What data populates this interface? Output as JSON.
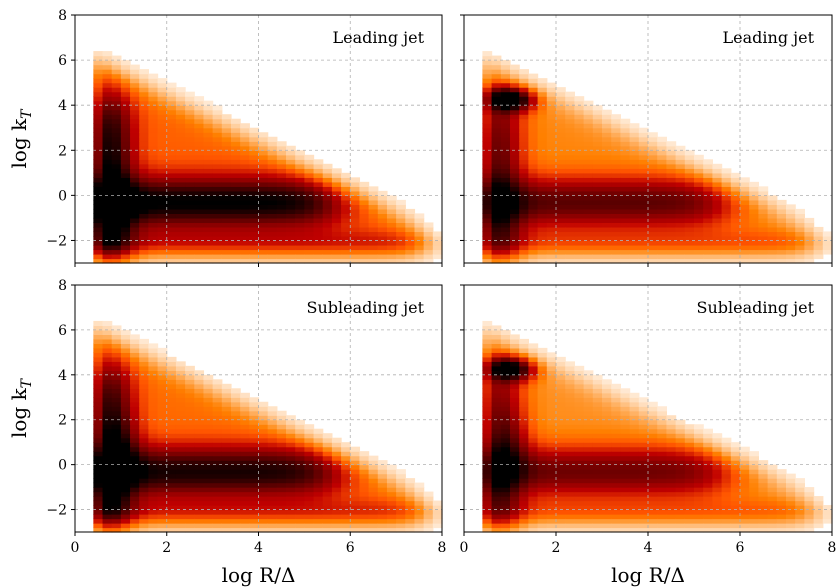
{
  "chart_data": {
    "type": "heatmap",
    "shared_axes": {
      "xlabel": "log R/Δ",
      "ylabel": "log k_T",
      "xlim": [
        0,
        8
      ],
      "ylim": [
        -3,
        8
      ],
      "xticks": [
        0,
        2,
        4,
        6,
        8
      ],
      "yticks": [
        -2,
        0,
        2,
        4,
        6,
        8
      ],
      "grid": true,
      "colormap": "gist_heat_r"
    },
    "panels": [
      {
        "label": "Leading jet",
        "shape": "no_peak"
      },
      {
        "label": "Leading jet",
        "shape": "with_peak"
      },
      {
        "label": "Subleading jet",
        "shape": "no_peak"
      },
      {
        "label": "Subleading jet",
        "shape": "with_peak"
      }
    ],
    "axis_text": {
      "xlabel_main": "log R/",
      "xlabel_symbol": "Δ",
      "ylabel_main": "log k",
      "ylabel_sub": "T",
      "minus": "−"
    }
  }
}
